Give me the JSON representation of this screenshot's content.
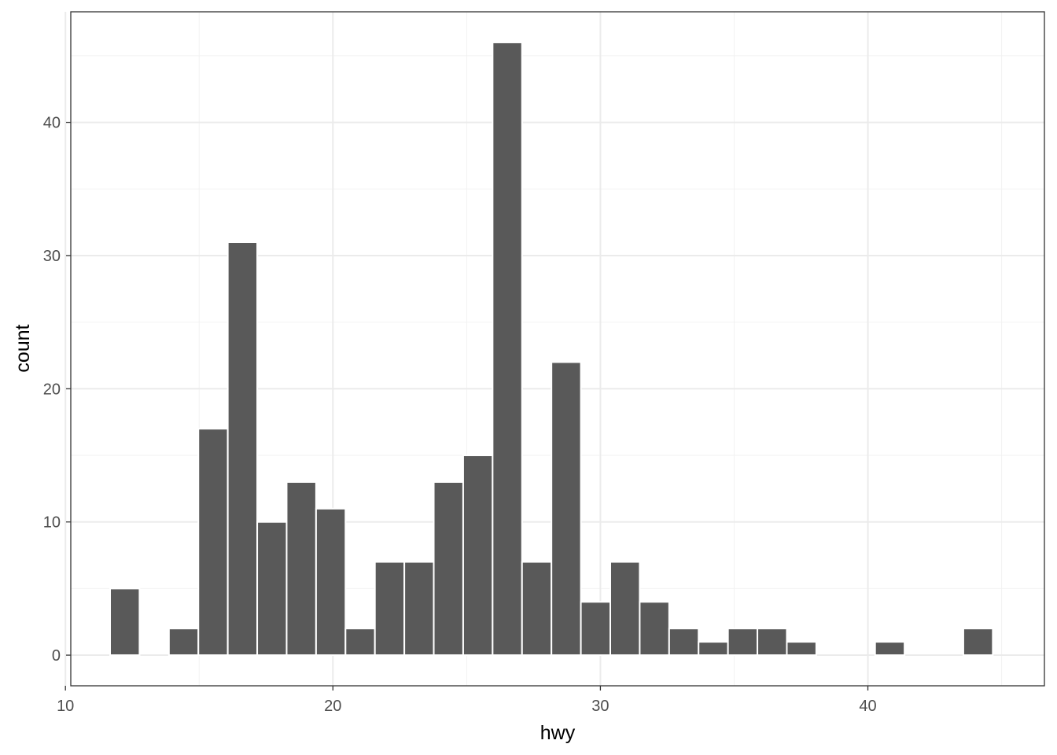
{
  "chart_data": {
    "type": "bar",
    "xlabel": "hwy",
    "ylabel": "count",
    "xlim": [
      10.2,
      46.6
    ],
    "ylim": [
      -2.3,
      48.3
    ],
    "x_ticks": [
      10,
      20,
      30,
      40
    ],
    "y_ticks": [
      0,
      10,
      20,
      30,
      40
    ],
    "x_minor_ticks": [
      15,
      25,
      35,
      45
    ],
    "y_minor_ticks": [
      5,
      15,
      25,
      35,
      45
    ],
    "grid": true,
    "bar_color": "#595959",
    "bar_border": "#ffffff",
    "bins": [
      {
        "x0": 11.67,
        "x1": 12.77,
        "count": 5
      },
      {
        "x0": 12.77,
        "x1": 13.87,
        "count": 0
      },
      {
        "x0": 13.87,
        "x1": 14.97,
        "count": 2
      },
      {
        "x0": 14.97,
        "x1": 16.07,
        "count": 17
      },
      {
        "x0": 16.07,
        "x1": 17.17,
        "count": 31
      },
      {
        "x0": 17.17,
        "x1": 18.27,
        "count": 10
      },
      {
        "x0": 18.27,
        "x1": 19.37,
        "count": 13
      },
      {
        "x0": 19.37,
        "x1": 20.47,
        "count": 11
      },
      {
        "x0": 20.47,
        "x1": 21.57,
        "count": 2
      },
      {
        "x0": 21.57,
        "x1": 22.67,
        "count": 7
      },
      {
        "x0": 22.67,
        "x1": 23.77,
        "count": 7
      },
      {
        "x0": 23.77,
        "x1": 24.87,
        "count": 13
      },
      {
        "x0": 24.87,
        "x1": 25.97,
        "count": 15
      },
      {
        "x0": 25.97,
        "x1": 27.07,
        "count": 46
      },
      {
        "x0": 27.07,
        "x1": 28.17,
        "count": 7
      },
      {
        "x0": 28.17,
        "x1": 29.27,
        "count": 22
      },
      {
        "x0": 29.27,
        "x1": 30.37,
        "count": 4
      },
      {
        "x0": 30.37,
        "x1": 31.47,
        "count": 7
      },
      {
        "x0": 31.47,
        "x1": 32.57,
        "count": 4
      },
      {
        "x0": 32.57,
        "x1": 33.67,
        "count": 2
      },
      {
        "x0": 33.67,
        "x1": 34.77,
        "count": 1
      },
      {
        "x0": 34.77,
        "x1": 35.87,
        "count": 2
      },
      {
        "x0": 35.87,
        "x1": 36.97,
        "count": 2
      },
      {
        "x0": 36.97,
        "x1": 38.07,
        "count": 1
      },
      {
        "x0": 38.07,
        "x1": 39.17,
        "count": 0
      },
      {
        "x0": 39.17,
        "x1": 40.27,
        "count": 0
      },
      {
        "x0": 40.27,
        "x1": 41.37,
        "count": 1
      },
      {
        "x0": 41.37,
        "x1": 42.47,
        "count": 0
      },
      {
        "x0": 42.47,
        "x1": 43.57,
        "count": 0
      },
      {
        "x0": 43.57,
        "x1": 44.67,
        "count": 2
      }
    ]
  }
}
